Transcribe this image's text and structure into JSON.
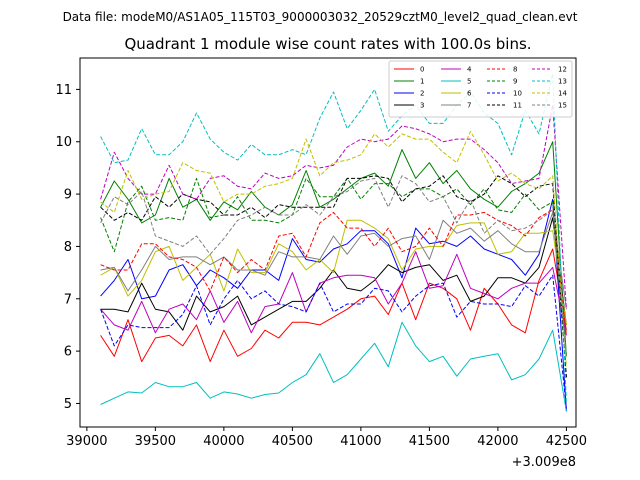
{
  "chart_data": {
    "type": "line",
    "suptitle": "Data file: modeM0/AS1A05_115T03_9000003032_20529cztM0_level2_quad_clean.evt",
    "title": "Quadrant 1 module wise count rates with 100.0s bins.",
    "xlabel": "",
    "ylabel": "",
    "x_offset_label": "+3.009e8",
    "xlim": [
      38950,
      42570
    ],
    "ylim": [
      4.55,
      11.6
    ],
    "xticks": [
      39000,
      39500,
      40000,
      40500,
      41000,
      41500,
      42000,
      42500
    ],
    "xtick_labels": [
      "39000",
      "39500",
      "40000",
      "40500",
      "41000",
      "41500",
      "42000",
      "42500"
    ],
    "yticks": [
      5,
      6,
      7,
      8,
      9,
      10,
      11
    ],
    "ytick_labels": [
      "5",
      "6",
      "7",
      "8",
      "9",
      "10",
      "11"
    ],
    "legend_location": "top-right",
    "x": [
      39100,
      39200,
      39300,
      39400,
      39500,
      39600,
      39700,
      39800,
      39900,
      40000,
      40100,
      40200,
      40300,
      40400,
      40500,
      40600,
      40700,
      40800,
      40900,
      41000,
      41100,
      41200,
      41300,
      41400,
      41500,
      41600,
      41700,
      41800,
      41900,
      42000,
      42100,
      42200,
      42300,
      42400,
      42500
    ],
    "series": [
      {
        "name": "0",
        "color": "#ff0000",
        "dash": "solid",
        "values": [
          6.3,
          5.9,
          6.6,
          5.8,
          6.25,
          6.3,
          6.1,
          6.5,
          5.8,
          6.4,
          5.9,
          6.05,
          6.4,
          6.25,
          6.55,
          6.55,
          6.5,
          6.65,
          6.8,
          7.0,
          7.05,
          6.7,
          7.3,
          6.6,
          7.3,
          7.2,
          7.0,
          6.4,
          7.2,
          6.9,
          6.5,
          6.35,
          7.35,
          7.95,
          6.4
        ]
      },
      {
        "name": "1",
        "color": "#008000",
        "dash": "solid",
        "values": [
          8.75,
          9.25,
          8.9,
          8.45,
          8.6,
          9.3,
          8.75,
          8.9,
          8.5,
          8.85,
          8.7,
          9.05,
          8.75,
          8.6,
          8.8,
          9.45,
          8.75,
          8.9,
          9.1,
          9.3,
          9.4,
          9.15,
          9.85,
          9.3,
          9.6,
          9.2,
          9.45,
          9.1,
          8.9,
          8.75,
          9.05,
          9.2,
          9.4,
          10.0,
          5.9
        ]
      },
      {
        "name": "2",
        "color": "#0000ff",
        "dash": "solid",
        "values": [
          7.05,
          7.35,
          7.75,
          7.0,
          7.05,
          7.55,
          7.65,
          7.25,
          7.55,
          7.4,
          7.2,
          7.55,
          7.55,
          7.35,
          8.15,
          7.75,
          7.7,
          7.95,
          8.05,
          8.3,
          8.3,
          8.05,
          7.4,
          8.35,
          8.05,
          8.1,
          8.0,
          8.2,
          7.95,
          7.85,
          7.75,
          7.45,
          7.85,
          8.9,
          4.85
        ]
      },
      {
        "name": "3",
        "color": "#000000",
        "dash": "solid",
        "values": [
          6.8,
          6.8,
          6.75,
          7.3,
          6.8,
          6.75,
          6.4,
          7.05,
          6.75,
          6.85,
          7.05,
          6.5,
          6.65,
          6.8,
          6.95,
          6.95,
          7.2,
          7.55,
          7.2,
          7.15,
          7.35,
          7.65,
          7.5,
          7.6,
          7.65,
          7.35,
          7.45,
          6.95,
          7.05,
          7.4,
          7.4,
          7.3,
          7.6,
          8.55,
          6.5
        ]
      },
      {
        "name": "4",
        "color": "#bf00bf",
        "dash": "solid",
        "values": [
          6.8,
          6.5,
          6.4,
          6.95,
          6.35,
          6.8,
          6.9,
          6.6,
          7.15,
          6.55,
          6.95,
          6.35,
          6.85,
          6.9,
          7.5,
          6.75,
          7.3,
          7.4,
          7.45,
          7.45,
          7.4,
          6.9,
          7.3,
          7.9,
          7.2,
          7.25,
          7.85,
          7.2,
          7.1,
          7.0,
          7.2,
          7.3,
          7.3,
          7.6,
          6.3
        ]
      },
      {
        "name": "5",
        "color": "#00bfbf",
        "dash": "solid",
        "values": [
          4.98,
          5.1,
          5.22,
          5.2,
          5.4,
          5.32,
          5.32,
          5.4,
          5.1,
          5.22,
          5.18,
          5.1,
          5.17,
          5.2,
          5.4,
          5.55,
          5.95,
          5.4,
          5.55,
          5.85,
          6.15,
          5.7,
          6.55,
          6.1,
          5.8,
          5.9,
          5.52,
          5.85,
          5.9,
          5.95,
          5.45,
          5.55,
          5.85,
          6.4,
          4.85
        ]
      },
      {
        "name": "6",
        "color": "#bfbf00",
        "dash": "solid",
        "values": [
          7.45,
          7.6,
          7.05,
          7.35,
          7.9,
          8.0,
          7.35,
          7.6,
          7.85,
          7.15,
          7.95,
          7.5,
          7.5,
          8.05,
          7.9,
          7.55,
          7.75,
          7.5,
          8.5,
          8.5,
          8.35,
          8.15,
          7.55,
          7.95,
          8.0,
          8.0,
          8.4,
          8.45,
          8.45,
          7.85,
          7.9,
          8.25,
          8.25,
          8.3,
          6.5
        ]
      },
      {
        "name": "7",
        "color": "#808080",
        "dash": "solid",
        "values": [
          7.55,
          7.6,
          7.15,
          7.55,
          8.0,
          7.75,
          7.8,
          7.8,
          7.65,
          7.8,
          7.55,
          7.55,
          7.45,
          7.9,
          7.8,
          7.8,
          7.75,
          8.2,
          7.85,
          8.2,
          8.25,
          8.0,
          8.15,
          8.2,
          7.75,
          8.5,
          8.25,
          8.35,
          8.1,
          8.3,
          8.05,
          7.9,
          7.9,
          8.65,
          6.8
        ]
      },
      {
        "name": "8",
        "color": "#ff0000",
        "dash": "dashed",
        "values": [
          7.65,
          7.55,
          7.55,
          8.05,
          8.05,
          7.8,
          7.75,
          7.6,
          7.15,
          7.8,
          7.5,
          7.75,
          7.55,
          8.2,
          8.25,
          7.8,
          8.45,
          8.65,
          8.35,
          8.35,
          8.0,
          8.35,
          7.9,
          8.0,
          8.35,
          8.0,
          8.6,
          8.6,
          8.65,
          8.5,
          8.4,
          8.2,
          8.55,
          8.7,
          6.3
        ]
      },
      {
        "name": "9",
        "color": "#008000",
        "dash": "dashed",
        "values": [
          8.55,
          7.9,
          8.85,
          9.15,
          8.5,
          8.55,
          8.5,
          9.3,
          8.55,
          8.6,
          8.95,
          8.5,
          8.5,
          8.45,
          8.6,
          9.3,
          8.95,
          8.95,
          9.3,
          8.9,
          9.2,
          9.2,
          8.95,
          9.1,
          9.1,
          8.95,
          9.1,
          8.8,
          9.1,
          8.7,
          8.65,
          9.0,
          8.7,
          8.85,
          5.5
        ]
      },
      {
        "name": "10",
        "color": "#0000ff",
        "dash": "dashed",
        "values": [
          6.8,
          6.1,
          6.5,
          6.45,
          6.45,
          6.45,
          6.7,
          7.25,
          6.5,
          7.0,
          7.35,
          7.0,
          7.15,
          6.9,
          6.85,
          6.75,
          7.3,
          6.75,
          6.9,
          6.9,
          7.2,
          7.15,
          6.75,
          7.05,
          7.25,
          7.3,
          6.65,
          6.95,
          6.9,
          6.9,
          6.85,
          7.25,
          7.05,
          7.45,
          4.9
        ]
      },
      {
        "name": "11",
        "color": "#000000",
        "dash": "dashed",
        "values": [
          8.75,
          8.5,
          8.65,
          8.5,
          8.95,
          8.75,
          9.0,
          8.9,
          8.85,
          8.6,
          8.6,
          8.75,
          8.55,
          8.8,
          8.75,
          8.75,
          8.75,
          8.75,
          9.3,
          9.3,
          9.35,
          9.3,
          8.85,
          9.1,
          9.15,
          9.35,
          8.95,
          8.85,
          9.0,
          9.35,
          9.2,
          8.95,
          9.15,
          9.2,
          5.5
        ]
      },
      {
        "name": "12",
        "color": "#bf00bf",
        "dash": "dashed",
        "values": [
          8.9,
          9.8,
          9.3,
          9.0,
          9.0,
          9.55,
          9.0,
          8.9,
          9.3,
          9.35,
          9.15,
          9.1,
          9.4,
          9.3,
          9.35,
          9.55,
          9.5,
          9.55,
          9.9,
          10.05,
          10.0,
          10.05,
          10.3,
          10.25,
          10.15,
          10.0,
          10.05,
          10.05,
          9.85,
          9.6,
          9.2,
          9.25,
          9.3,
          10.7,
          6.8
        ]
      },
      {
        "name": "13",
        "color": "#00bfbf",
        "dash": "dashed",
        "values": [
          10.1,
          9.6,
          9.65,
          10.25,
          9.75,
          9.75,
          10.0,
          10.55,
          10.05,
          9.8,
          9.65,
          9.95,
          9.75,
          9.75,
          9.85,
          9.75,
          10.45,
          10.95,
          10.25,
          10.6,
          11.0,
          10.2,
          10.5,
          10.7,
          10.35,
          10.35,
          10.7,
          10.95,
          10.55,
          10.35,
          9.75,
          10.6,
          10.15,
          11.3,
          5.0
        ]
      },
      {
        "name": "14",
        "color": "#bfbf00",
        "dash": "dashed",
        "values": [
          8.85,
          8.65,
          9.45,
          8.9,
          9.0,
          9.05,
          9.6,
          9.45,
          9.4,
          8.85,
          9.0,
          9.0,
          9.15,
          9.2,
          9.3,
          10.05,
          9.35,
          9.6,
          9.65,
          9.75,
          10.15,
          9.9,
          10.15,
          10.05,
          10.05,
          9.8,
          9.6,
          10.2,
          9.75,
          9.25,
          9.4,
          9.2,
          9.1,
          9.35,
          5.7
        ]
      },
      {
        "name": "15",
        "color": "#808080",
        "dash": "dashed",
        "values": [
          8.45,
          8.95,
          8.8,
          9.05,
          8.2,
          8.1,
          8.0,
          8.2,
          7.85,
          8.15,
          8.5,
          8.6,
          8.75,
          8.6,
          8.6,
          8.8,
          8.6,
          8.95,
          9.05,
          9.25,
          9.3,
          8.75,
          9.35,
          9.2,
          8.85,
          8.95,
          8.45,
          8.9,
          8.25,
          8.5,
          8.3,
          8.35,
          8.5,
          8.7,
          5.9
        ]
      }
    ]
  }
}
